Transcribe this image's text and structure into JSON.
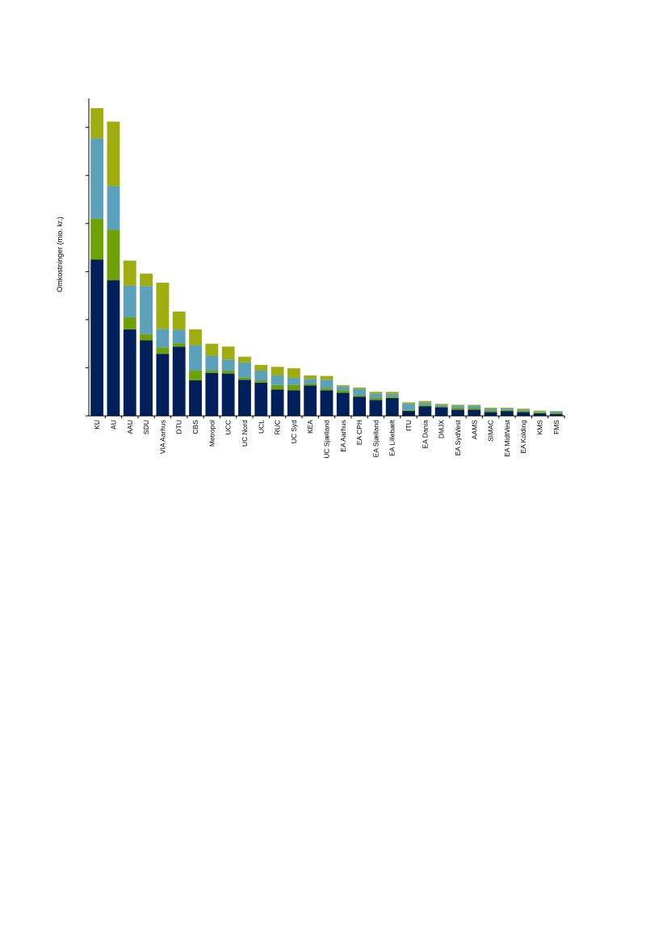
{
  "chart_data": {
    "type": "bar",
    "stacked": true,
    "title": "",
    "xlabel": "",
    "ylabel": "Omkostninger (mio. kr.)",
    "ylim": [
      0,
      6600
    ],
    "ytick_step": 1000,
    "y_tick_labels_shown": false,
    "grid": false,
    "legend": "none",
    "categories": [
      "KU",
      "AU",
      "AAU",
      "SDU",
      "VIA Aarhus",
      "DTU",
      "CBS",
      "Metropol",
      "UCC",
      "UC Nord",
      "UCL",
      "RUC",
      "UC Syd",
      "KEA",
      "UC Sjælland",
      "EA Aarhus",
      "EA CPH",
      "EA Sjælland",
      "EA Lillebælt",
      "ITU",
      "EA Dania",
      "DMJX",
      "EA SydVest",
      "AAMS",
      "SIMAC",
      "EA MidtVest",
      "EA Kolding",
      "KMS",
      "FMS"
    ],
    "series": [
      {
        "color": "#00205b",
        "values": [
          3250,
          2820,
          1800,
          1570,
          1290,
          1440,
          740,
          890,
          880,
          750,
          690,
          550,
          530,
          630,
          530,
          480,
          400,
          330,
          370,
          100,
          200,
          180,
          130,
          130,
          80,
          100,
          80,
          50,
          40
        ]
      },
      {
        "color": "#6ea106",
        "values": [
          850,
          1050,
          250,
          130,
          130,
          70,
          200,
          50,
          60,
          40,
          40,
          90,
          110,
          40,
          40,
          50,
          30,
          40,
          30,
          20,
          30,
          20,
          40,
          30,
          30,
          20,
          20,
          20,
          20
        ]
      },
      {
        "color": "#5ba1bc",
        "values": [
          1670,
          910,
          660,
          1000,
          390,
          280,
          530,
          310,
          230,
          320,
          210,
          200,
          150,
          100,
          180,
          80,
          130,
          90,
          60,
          130,
          50,
          30,
          40,
          50,
          40,
          30,
          30,
          20,
          30
        ]
      },
      {
        "color": "#a0ad0f",
        "values": [
          630,
          1340,
          520,
          260,
          960,
          380,
          330,
          250,
          270,
          120,
          120,
          180,
          200,
          70,
          80,
          30,
          30,
          40,
          40,
          30,
          30,
          20,
          20,
          20,
          20,
          20,
          20,
          20,
          10
        ]
      }
    ]
  }
}
